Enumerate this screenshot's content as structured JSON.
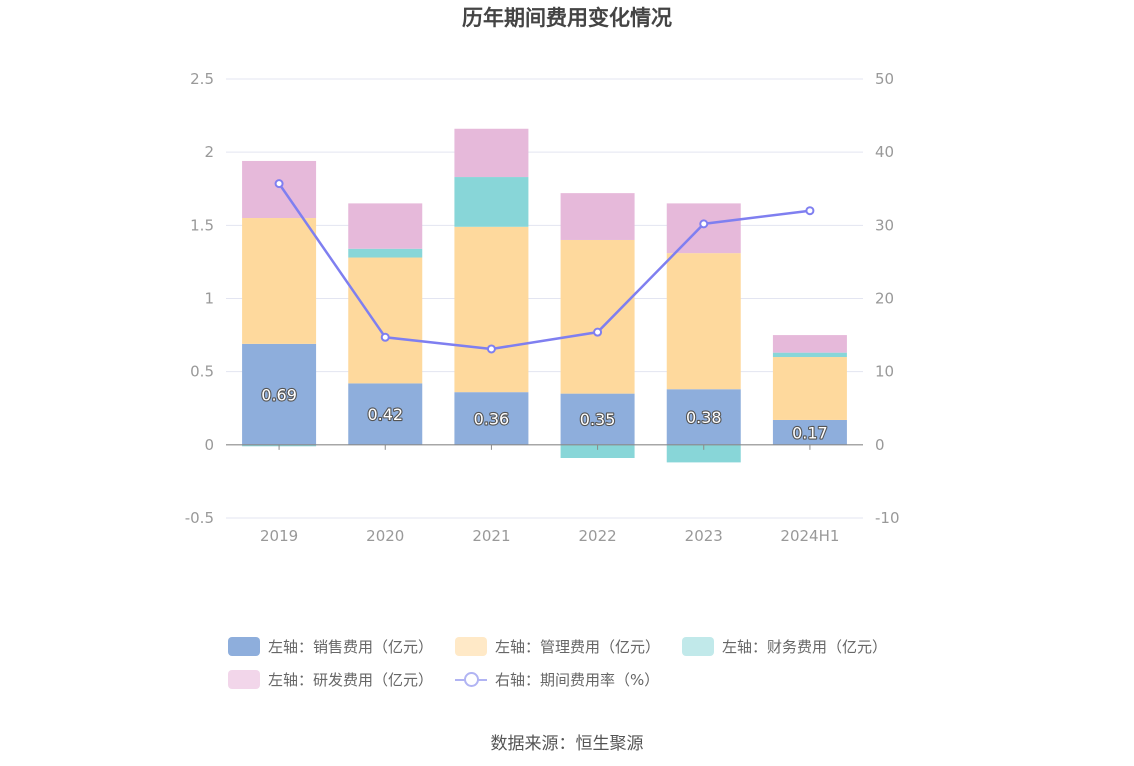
{
  "chart_data": {
    "type": "bar",
    "title": "历年期间费用变化情况",
    "categories": [
      "2019",
      "2020",
      "2021",
      "2022",
      "2023",
      "2024H1"
    ],
    "stacked": true,
    "series": [
      {
        "name": "左轴：销售费用（亿元）",
        "axis": "left",
        "type": "bar",
        "color": "#8eaedc",
        "values": [
          0.69,
          0.42,
          0.36,
          0.35,
          0.38,
          0.17
        ],
        "labels": [
          "0.69",
          "0.42",
          "0.36",
          "0.35",
          "0.38",
          "0.17"
        ]
      },
      {
        "name": "左轴：管理费用（亿元）",
        "axis": "left",
        "type": "bar",
        "color": "#fed99d",
        "values": [
          0.86,
          0.86,
          1.13,
          1.05,
          0.93,
          0.43
        ]
      },
      {
        "name": "左轴：财务费用（亿元）",
        "axis": "left",
        "type": "bar",
        "color": "#88d6d8",
        "values": [
          -0.01,
          0.06,
          0.34,
          -0.09,
          -0.12,
          0.03
        ]
      },
      {
        "name": "左轴：研发费用（亿元）",
        "axis": "left",
        "type": "bar",
        "color": "#e6b9da",
        "values": [
          0.39,
          0.31,
          0.33,
          0.32,
          0.34,
          0.12
        ]
      },
      {
        "name": "右轴：期间费用率（%）",
        "axis": "right",
        "type": "line",
        "color": "#7f7ff0",
        "values": [
          35.7,
          14.7,
          13.1,
          15.4,
          30.2,
          32.0
        ]
      }
    ],
    "left_axis": {
      "ticks": [
        "2.5",
        "2",
        "1.5",
        "1",
        "0.5",
        "0",
        "-0.5"
      ],
      "range": [
        -0.5,
        2.5
      ]
    },
    "right_axis": {
      "ticks": [
        "50",
        "40",
        "30",
        "20",
        "10",
        "0",
        "-10"
      ],
      "range": [
        -10,
        50
      ]
    },
    "grid": true,
    "legend_position": "bottom"
  },
  "legend_colors": {
    "line_legend": "#b1b4f3",
    "财务_legend": "#c1e9ea",
    "研发_legend": "#f2d6ea",
    "管理_legend": "#ffe9c7"
  },
  "source": "数据来源：恒生聚源"
}
